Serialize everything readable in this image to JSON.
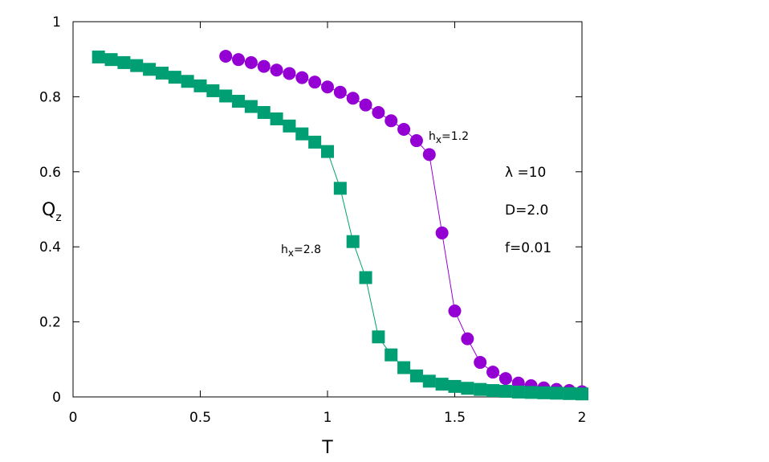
{
  "chart_data": {
    "type": "scatter",
    "title": "",
    "xlabel": "T",
    "ylabel": {
      "main": "Q",
      "sub": "z"
    },
    "xlim": [
      0,
      2
    ],
    "ylim": [
      0,
      1
    ],
    "xticks": [
      "0",
      "0.5",
      "1",
      "1.5",
      "2"
    ],
    "yticks": [
      "0",
      "0.2",
      "0.4",
      "0.6",
      "0.8",
      "1"
    ],
    "grid": false,
    "series": [
      {
        "name": "hx=1.2",
        "label": {
          "main": "h",
          "sub": "x",
          "rest": "=1.2"
        },
        "marker": "circle",
        "color": "#9400D3",
        "x": [
          0.6,
          0.65,
          0.7,
          0.75,
          0.8,
          0.85,
          0.9,
          0.95,
          1.0,
          1.05,
          1.1,
          1.15,
          1.2,
          1.25,
          1.3,
          1.35,
          1.4,
          1.45,
          1.5,
          1.55,
          1.6,
          1.65,
          1.7,
          1.75,
          1.8,
          1.85,
          1.9,
          1.95,
          2.0
        ],
        "y": [
          0.908,
          0.899,
          0.891,
          0.881,
          0.871,
          0.862,
          0.851,
          0.839,
          0.826,
          0.812,
          0.796,
          0.778,
          0.758,
          0.736,
          0.713,
          0.683,
          0.646,
          0.437,
          0.229,
          0.155,
          0.092,
          0.066,
          0.049,
          0.037,
          0.03,
          0.024,
          0.02,
          0.017,
          0.014
        ]
      },
      {
        "name": "hx=2.8",
        "label": {
          "main": "h",
          "sub": "x",
          "rest": "=2.8"
        },
        "marker": "square",
        "color": "#009E73",
        "x": [
          0.1,
          0.15,
          0.2,
          0.25,
          0.3,
          0.35,
          0.4,
          0.45,
          0.5,
          0.55,
          0.6,
          0.65,
          0.7,
          0.75,
          0.8,
          0.85,
          0.9,
          0.95,
          1.0,
          1.05,
          1.1,
          1.15,
          1.2,
          1.25,
          1.3,
          1.35,
          1.4,
          1.45,
          1.5,
          1.55,
          1.6,
          1.65,
          1.7,
          1.75,
          1.8,
          1.85,
          1.9,
          1.95,
          2.0
        ],
        "y": [
          0.906,
          0.899,
          0.891,
          0.883,
          0.873,
          0.863,
          0.852,
          0.841,
          0.829,
          0.816,
          0.802,
          0.788,
          0.774,
          0.758,
          0.741,
          0.722,
          0.701,
          0.679,
          0.654,
          0.556,
          0.414,
          0.318,
          0.16,
          0.112,
          0.078,
          0.056,
          0.042,
          0.034,
          0.028,
          0.023,
          0.02,
          0.017,
          0.015,
          0.013,
          0.012,
          0.011,
          0.01,
          0.009,
          0.008
        ]
      }
    ],
    "annotations": [
      "λ =10",
      "D=2.0",
      "f=0.01"
    ]
  }
}
